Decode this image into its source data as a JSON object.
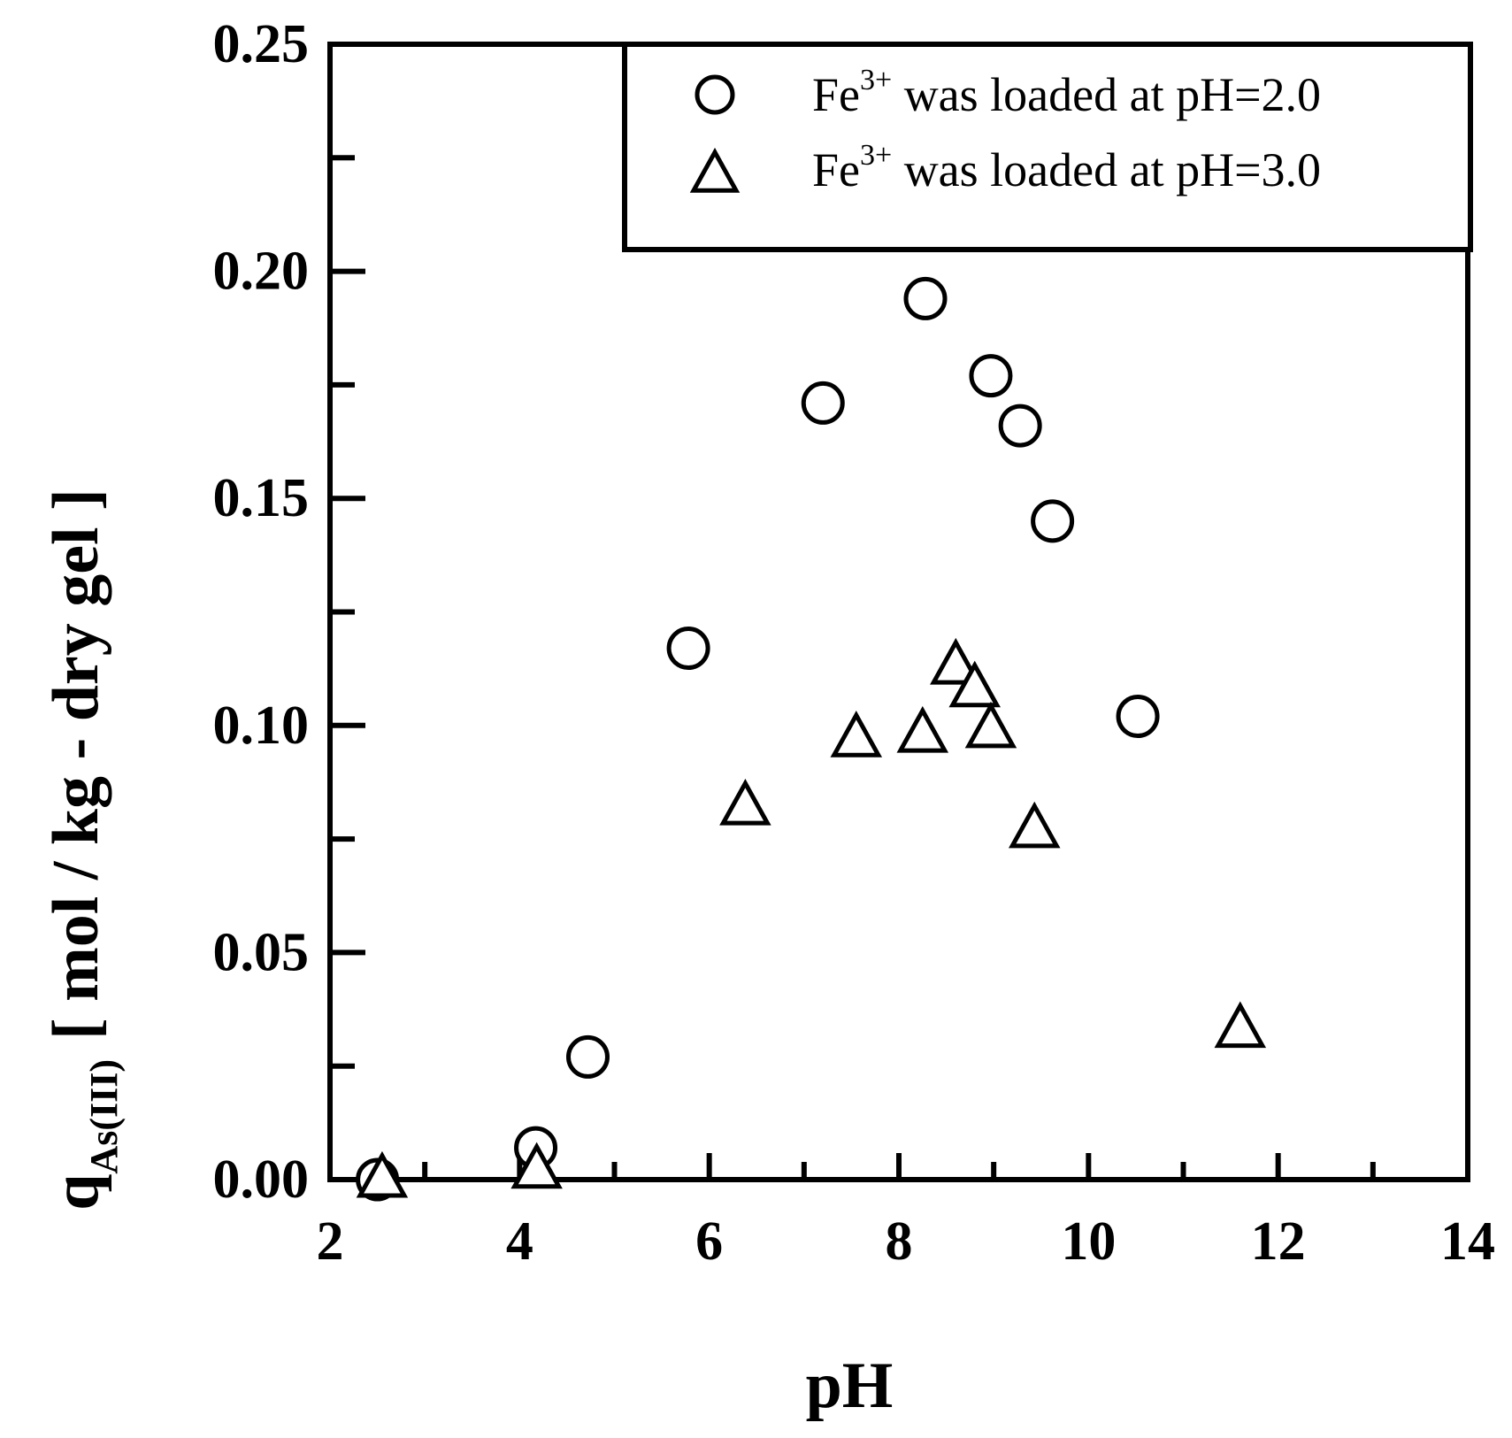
{
  "chart_data": {
    "type": "scatter",
    "xlabel": "pH",
    "ylabel": {
      "symbol": "q",
      "subscript": "As(III)",
      "units": "[ mol / kg - dry gel ]"
    },
    "xlim": [
      2,
      14
    ],
    "ylim": [
      0,
      0.25
    ],
    "x_ticks": [
      "2",
      "4",
      "6",
      "8",
      "10",
      "12",
      "14"
    ],
    "y_ticks": [
      "0.00",
      "0.05",
      "0.10",
      "0.15",
      "0.20",
      "0.25"
    ],
    "grid": false,
    "legend_position": "top-right",
    "series": [
      {
        "name": "Fe3+ was loaded at pH=2.0",
        "name_parts": {
          "prefix": "Fe",
          "superscript": "3+",
          "suffix": " was loaded at pH=2.0"
        },
        "marker": "circle",
        "x": [
          2.5,
          4.17,
          4.72,
          5.78,
          7.2,
          8.28,
          8.97,
          9.28,
          9.62,
          10.52
        ],
        "y": [
          0.0,
          0.007,
          0.027,
          0.117,
          0.171,
          0.194,
          0.177,
          0.166,
          0.145,
          0.102
        ]
      },
      {
        "name": "Fe3+ was loaded at pH=3.0",
        "name_parts": {
          "prefix": "Fe",
          "superscript": "3+",
          "suffix": " was loaded at pH=3.0"
        },
        "marker": "triangle",
        "x": [
          2.55,
          4.18,
          6.38,
          7.55,
          8.25,
          8.6,
          8.8,
          8.97,
          9.43,
          11.6
        ],
        "y": [
          0.0,
          0.002,
          0.082,
          0.097,
          0.098,
          0.113,
          0.108,
          0.099,
          0.077,
          0.033
        ]
      }
    ]
  }
}
